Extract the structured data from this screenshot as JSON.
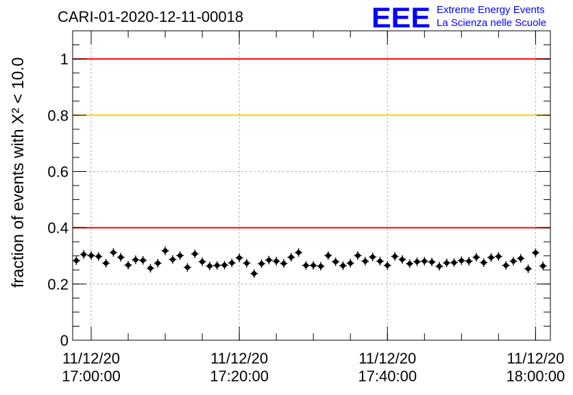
{
  "chart_data": {
    "type": "scatter",
    "title": "CARI-01-2020-12-11-00018",
    "ylabel": "fraction of events with Χ² < 10.0",
    "xlabel": "",
    "ylim": [
      0,
      1.1
    ],
    "y_ticks": [
      "0",
      "0.2",
      "0.4",
      "0.6",
      "0.8",
      "1"
    ],
    "x_ticks": [
      {
        "date": "11/12/20",
        "time": "17:00:00",
        "minutes": 0
      },
      {
        "date": "11/12/20",
        "time": "17:20:00",
        "minutes": 20
      },
      {
        "date": "11/12/20",
        "time": "17:40:00",
        "minutes": 40
      },
      {
        "date": "11/12/20",
        "time": "18:00:00",
        "minutes": 60
      }
    ],
    "xlim_minutes": [
      -2.5,
      62.0
    ],
    "grid": true,
    "reference_lines": [
      {
        "y": 1.0,
        "color": "#ff0000"
      },
      {
        "y": 0.8,
        "color": "#ffcc00"
      },
      {
        "y": 0.4,
        "color": "#ff0000"
      }
    ],
    "marker_color": "#000000",
    "y_error": 0.015,
    "x_half_width": 0.5,
    "points": [
      {
        "x": -2.0,
        "y": 0.283
      },
      {
        "x": -1.0,
        "y": 0.305
      },
      {
        "x": 0.0,
        "y": 0.301
      },
      {
        "x": 1.0,
        "y": 0.298
      },
      {
        "x": 2.0,
        "y": 0.274
      },
      {
        "x": 3.0,
        "y": 0.312
      },
      {
        "x": 4.0,
        "y": 0.295
      },
      {
        "x": 5.0,
        "y": 0.267
      },
      {
        "x": 6.0,
        "y": 0.286
      },
      {
        "x": 7.0,
        "y": 0.284
      },
      {
        "x": 8.0,
        "y": 0.256
      },
      {
        "x": 9.0,
        "y": 0.274
      },
      {
        "x": 10.0,
        "y": 0.318
      },
      {
        "x": 11.0,
        "y": 0.287
      },
      {
        "x": 12.0,
        "y": 0.301
      },
      {
        "x": 13.0,
        "y": 0.259
      },
      {
        "x": 14.0,
        "y": 0.307
      },
      {
        "x": 15.0,
        "y": 0.279
      },
      {
        "x": 16.0,
        "y": 0.264
      },
      {
        "x": 17.0,
        "y": 0.266
      },
      {
        "x": 18.0,
        "y": 0.267
      },
      {
        "x": 19.0,
        "y": 0.275
      },
      {
        "x": 20.0,
        "y": 0.293
      },
      {
        "x": 21.0,
        "y": 0.274
      },
      {
        "x": 22.0,
        "y": 0.237
      },
      {
        "x": 23.0,
        "y": 0.272
      },
      {
        "x": 24.0,
        "y": 0.285
      },
      {
        "x": 25.0,
        "y": 0.281
      },
      {
        "x": 26.0,
        "y": 0.273
      },
      {
        "x": 27.0,
        "y": 0.295
      },
      {
        "x": 28.0,
        "y": 0.312
      },
      {
        "x": 29.0,
        "y": 0.266
      },
      {
        "x": 30.0,
        "y": 0.266
      },
      {
        "x": 31.0,
        "y": 0.263
      },
      {
        "x": 32.0,
        "y": 0.301
      },
      {
        "x": 33.0,
        "y": 0.279
      },
      {
        "x": 34.0,
        "y": 0.265
      },
      {
        "x": 35.0,
        "y": 0.274
      },
      {
        "x": 36.0,
        "y": 0.301
      },
      {
        "x": 37.0,
        "y": 0.281
      },
      {
        "x": 38.0,
        "y": 0.296
      },
      {
        "x": 39.0,
        "y": 0.281
      },
      {
        "x": 40.0,
        "y": 0.266
      },
      {
        "x": 41.0,
        "y": 0.298
      },
      {
        "x": 42.0,
        "y": 0.287
      },
      {
        "x": 43.0,
        "y": 0.272
      },
      {
        "x": 44.0,
        "y": 0.279
      },
      {
        "x": 45.0,
        "y": 0.281
      },
      {
        "x": 46.0,
        "y": 0.278
      },
      {
        "x": 47.0,
        "y": 0.263
      },
      {
        "x": 48.0,
        "y": 0.275
      },
      {
        "x": 49.0,
        "y": 0.276
      },
      {
        "x": 50.0,
        "y": 0.283
      },
      {
        "x": 51.0,
        "y": 0.281
      },
      {
        "x": 52.0,
        "y": 0.295
      },
      {
        "x": 53.0,
        "y": 0.276
      },
      {
        "x": 54.0,
        "y": 0.294
      },
      {
        "x": 55.0,
        "y": 0.298
      },
      {
        "x": 56.0,
        "y": 0.266
      },
      {
        "x": 57.0,
        "y": 0.281
      },
      {
        "x": 58.0,
        "y": 0.291
      },
      {
        "x": 59.0,
        "y": 0.254
      },
      {
        "x": 60.0,
        "y": 0.311
      },
      {
        "x": 61.0,
        "y": 0.264
      }
    ]
  },
  "logo": {
    "mark": "EEE",
    "line1": "Extreme Energy Events",
    "line2": "La Scienza nelle Scuole",
    "color": "#0000ff"
  }
}
